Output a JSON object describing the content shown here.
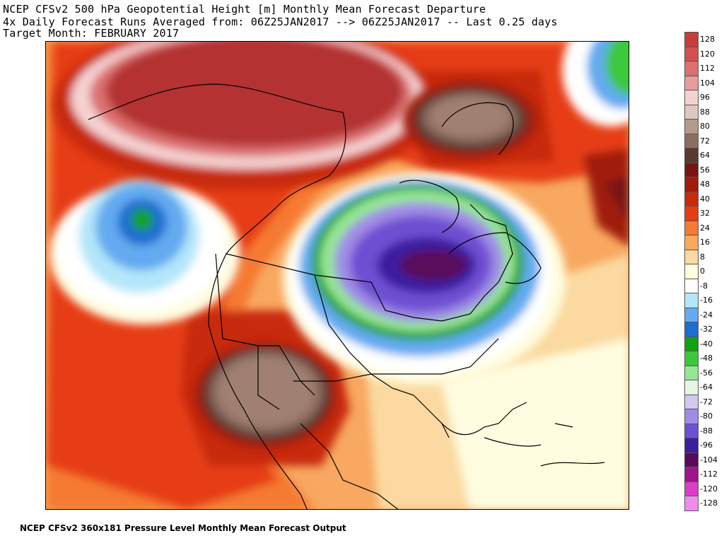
{
  "title": {
    "line1": "NCEP CFSv2 500 hPa Geopotential Height [m] Monthly Mean Forecast Departure",
    "line2": "4x Daily Forecast Runs Averaged from: 06Z25JAN2017 --> 06Z25JAN2017 -- Last 0.25 days",
    "line3": "Target Month: FEBRUARY 2017"
  },
  "footer": "NCEP CFSv2 360x181 Pressure Level Monthly Mean Forecast Output",
  "legend": [
    {
      "label": "128",
      "color": "#c83c3c"
    },
    {
      "label": "120",
      "color": "#d25050"
    },
    {
      "label": "112",
      "color": "#dc7070"
    },
    {
      "label": "104",
      "color": "#e89c9c"
    },
    {
      "label": "96",
      "color": "#f5d2d2"
    },
    {
      "label": "88",
      "color": "#dcc8c0"
    },
    {
      "label": "80",
      "color": "#b49a8c"
    },
    {
      "label": "72",
      "color": "#8c6e60"
    },
    {
      "label": "64",
      "color": "#5a3a30"
    },
    {
      "label": "56",
      "color": "#781414"
    },
    {
      "label": "48",
      "color": "#a01c0c"
    },
    {
      "label": "40",
      "color": "#c82a0c"
    },
    {
      "label": "32",
      "color": "#e63c14"
    },
    {
      "label": "24",
      "color": "#f57a32"
    },
    {
      "label": "16",
      "color": "#f8a860"
    },
    {
      "label": "8",
      "color": "#fbd9a0"
    },
    {
      "label": "0",
      "color": "#fffde0"
    },
    {
      "label": "-8",
      "color": "#ffffff"
    },
    {
      "label": "-16",
      "color": "#b4e6fa"
    },
    {
      "label": "-24",
      "color": "#64aaf0"
    },
    {
      "label": "-32",
      "color": "#1e6ed2"
    },
    {
      "label": "-40",
      "color": "#14a014"
    },
    {
      "label": "-48",
      "color": "#3cc83c"
    },
    {
      "label": "-56",
      "color": "#96e696"
    },
    {
      "label": "-64",
      "color": "#e6f5e6"
    },
    {
      "label": "-72",
      "color": "#d2c8f0"
    },
    {
      "label": "-80",
      "color": "#a08ce6"
    },
    {
      "label": "-88",
      "color": "#6e50d2"
    },
    {
      "label": "-96",
      "color": "#3c1ea0"
    },
    {
      "label": "-104",
      "color": "#5a0a5a"
    },
    {
      "label": "-112",
      "color": "#a0148c"
    },
    {
      "label": "-120",
      "color": "#dc3cc8"
    },
    {
      "label": "-128",
      "color": "#f08cf0"
    }
  ],
  "map_colors": {
    "background": "#f8b470",
    "ocean_east": "#fbd9a0",
    "warm_high": "#c82a0c",
    "extreme_high": "#b43232",
    "brown_high": "#a08072",
    "cold_low": "#5a0a5a"
  }
}
